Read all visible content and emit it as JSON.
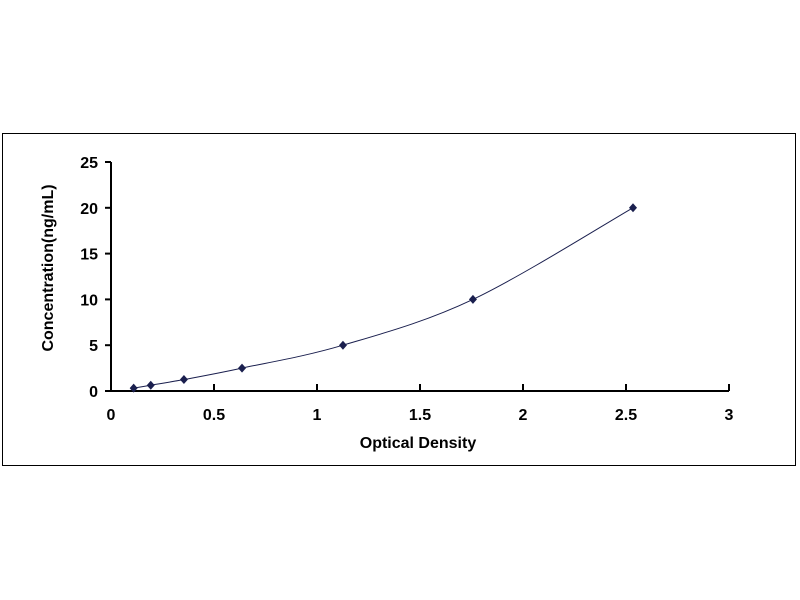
{
  "chart_data": {
    "type": "scatter",
    "title": "",
    "xlabel": "Optical Density",
    "ylabel": "Concentration(ng/mL)",
    "xlim": [
      0,
      3
    ],
    "ylim": [
      0,
      25
    ],
    "xticks": [
      0,
      0.5,
      1,
      1.5,
      2,
      2.5,
      3
    ],
    "xtick_labels": [
      "0",
      "0.5",
      "1",
      "1.5",
      "2",
      "2.5",
      "3"
    ],
    "yticks": [
      0,
      5,
      10,
      15,
      20,
      25
    ],
    "ytick_labels": [
      "0",
      "5",
      "10",
      "15",
      "20",
      "25"
    ],
    "grid": false,
    "legend": "none",
    "trendline": "smooth curve through points",
    "series": [
      {
        "x": [
          0.11,
          0.193,
          0.354,
          0.636,
          1.126,
          1.757,
          2.534
        ],
        "y": [
          0.31,
          0.63,
          1.25,
          2.5,
          5,
          10,
          20
        ],
        "marker": "diamond",
        "color": "#1a1f4e"
      }
    ]
  }
}
